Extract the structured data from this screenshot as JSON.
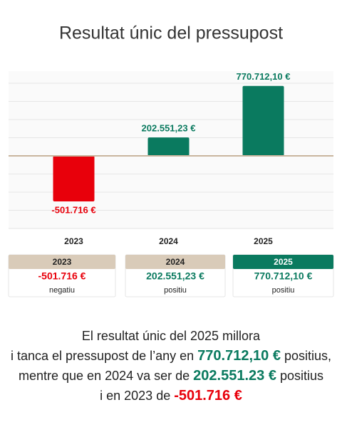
{
  "chart_data": {
    "type": "bar",
    "title": "Resultat únic del pressupost",
    "categories": [
      "2023",
      "2024",
      "2025"
    ],
    "values": [
      -501716,
      202551.23,
      770712.1
    ],
    "value_labels": [
      "-501.716 €",
      "202.551,23 €",
      "770.712,10 €"
    ],
    "colors": [
      "#e8000b",
      "#0a7a5f",
      "#0a7a5f"
    ],
    "baseline_color": "#c9b59e",
    "ylim": [
      -800000,
      800000
    ],
    "yticks": [
      -800000,
      -600000,
      -400000,
      -200000,
      0,
      200000,
      400000,
      600000,
      800000
    ],
    "grid": true
  },
  "cards": [
    {
      "header": "2023",
      "header_color": "#d9cbb9",
      "header_text_color": "#222222",
      "value": "-501.716 €",
      "value_color": "#e8000b",
      "note": "negatiu"
    },
    {
      "header": "2024",
      "header_color": "#d9cbb9",
      "header_text_color": "#222222",
      "value": "202.551,23 €",
      "value_color": "#0a7a5f",
      "note": "positiu"
    },
    {
      "header": "2025",
      "header_color": "#0a7a5f",
      "header_text_color": "#ffffff",
      "value": "770.712,10 €",
      "value_color": "#0a7a5f",
      "note": "positiu"
    }
  ],
  "summary": [
    [
      {
        "text": "El resultat únic del 2025 millora"
      }
    ],
    [
      {
        "text": "i tanca el pressupost de l’any en "
      },
      {
        "text": "770.712,10 €",
        "color": "#0a7a5f"
      },
      {
        "text": " positius,"
      }
    ],
    [
      {
        "text": "mentre que en 2024 va ser de "
      },
      {
        "text": "202.551.23 €",
        "color": "#0a7a5f"
      },
      {
        "text": " positius"
      }
    ],
    [
      {
        "text": "i en 2023 de "
      },
      {
        "text": "-501.716 €",
        "color": "#e8000b"
      }
    ]
  ]
}
